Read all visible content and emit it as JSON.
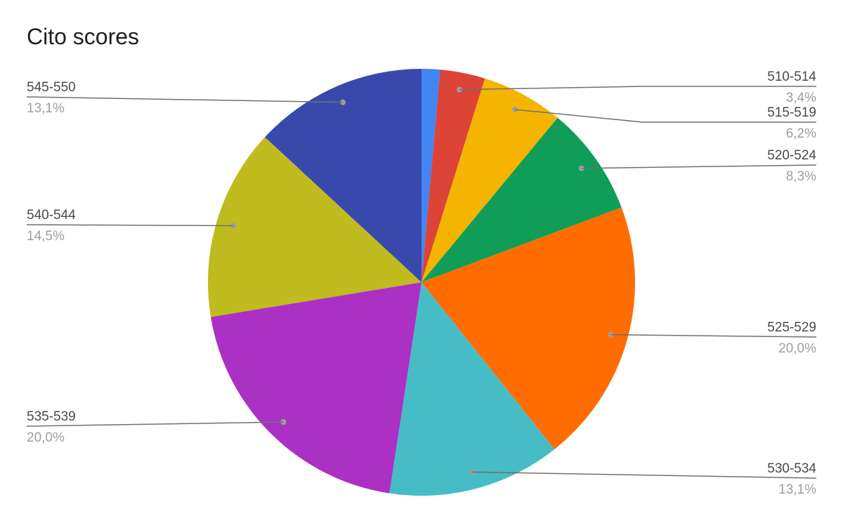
{
  "chart_data": {
    "type": "pie",
    "title": "Cito scores",
    "slices": [
      {
        "label": "510-514",
        "value": 1.4,
        "color": "#4285f4"
      },
      {
        "label": "510-514",
        "value": 3.4,
        "value_label": "3,4%",
        "color": "#db4437"
      },
      {
        "label": "515-519",
        "value": 6.2,
        "value_label": "6,2%",
        "color": "#f4b400"
      },
      {
        "label": "520-524",
        "value": 8.3,
        "value_label": "8,3%",
        "color": "#0f9d58"
      },
      {
        "label": "525-529",
        "value": 20.0,
        "value_label": "20,0%",
        "color": "#ff6d00"
      },
      {
        "label": "530-534",
        "value": 13.1,
        "value_label": "13,1%",
        "color": "#46bdc6"
      },
      {
        "label": "535-539",
        "value": 20.0,
        "value_label": "20,0%",
        "color": "#ab30c4"
      },
      {
        "label": "540-544",
        "value": 14.5,
        "value_label": "14,5%",
        "color": "#c0bb1f"
      },
      {
        "label": "545-550",
        "value": 13.1,
        "value_label": "13,1%",
        "color": "#3949ab"
      }
    ],
    "labelled_slices": [
      1,
      2,
      3,
      4,
      5,
      6,
      7,
      8
    ],
    "legend": "none"
  }
}
